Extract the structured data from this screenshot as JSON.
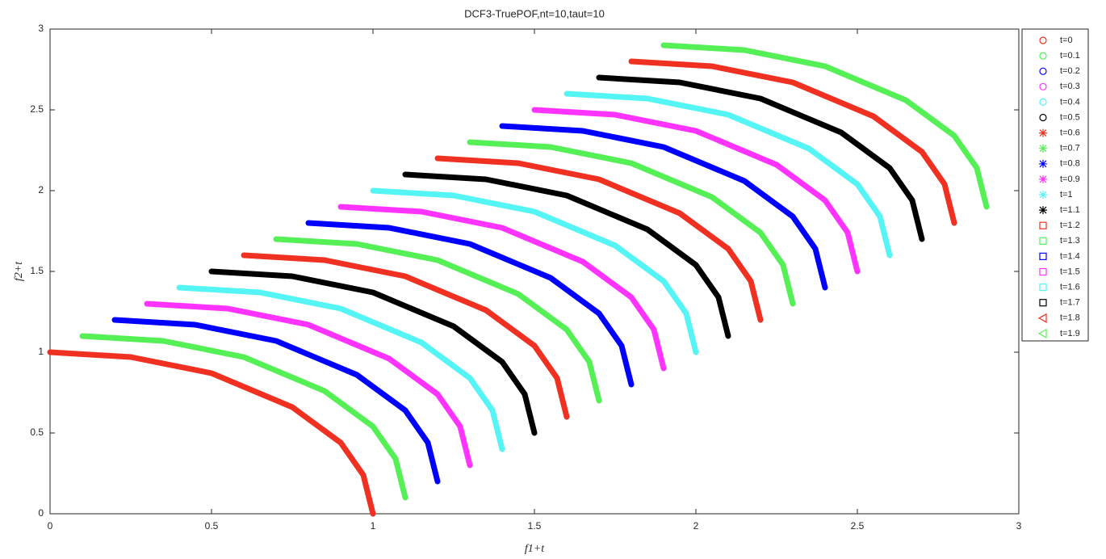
{
  "chart_data": {
    "type": "line",
    "title": "DCF3-TruePOF,nt=10,taut=10",
    "xlabel": "f1+t",
    "ylabel": "f2+t",
    "xlim": [
      0,
      3
    ],
    "ylim": [
      0,
      3
    ],
    "xticks": [
      0,
      0.5,
      1,
      1.5,
      2,
      2.5,
      3
    ],
    "yticks": [
      0,
      0.5,
      1,
      1.5,
      2,
      2.5,
      3
    ],
    "legend": "upper right outside",
    "series": [
      {
        "name": "t=0",
        "color": "#f03020",
        "marker": "circle",
        "x": [
          0,
          0.25,
          0.5,
          0.75,
          0.9,
          0.97,
          1
        ],
        "values": [
          1,
          0.97,
          0.87,
          0.66,
          0.44,
          0.24,
          0
        ]
      },
      {
        "name": "t=0.1",
        "color": "#55f055",
        "marker": "circle",
        "x": [
          0.1,
          0.35,
          0.6,
          0.85,
          1,
          1.07,
          1.1
        ],
        "values": [
          1.1,
          1.07,
          0.97,
          0.76,
          0.54,
          0.34,
          0.1
        ]
      },
      {
        "name": "t=0.2",
        "color": "#0000ff",
        "marker": "circle",
        "x": [
          0.2,
          0.45,
          0.7,
          0.95,
          1.1,
          1.17,
          1.2
        ],
        "values": [
          1.2,
          1.17,
          1.07,
          0.86,
          0.64,
          0.44,
          0.2
        ]
      },
      {
        "name": "t=0.3",
        "color": "#ff33ff",
        "marker": "circle",
        "x": [
          0.3,
          0.55,
          0.8,
          1.05,
          1.2,
          1.27,
          1.3
        ],
        "values": [
          1.3,
          1.27,
          1.17,
          0.96,
          0.74,
          0.54,
          0.3
        ]
      },
      {
        "name": "t=0.4",
        "color": "#55f5f5",
        "marker": "circle",
        "x": [
          0.4,
          0.65,
          0.9,
          1.15,
          1.3,
          1.37,
          1.4
        ],
        "values": [
          1.4,
          1.37,
          1.27,
          1.06,
          0.84,
          0.64,
          0.4
        ]
      },
      {
        "name": "t=0.5",
        "color": "#000000",
        "marker": "circle",
        "x": [
          0.5,
          0.75,
          1,
          1.25,
          1.4,
          1.47,
          1.5
        ],
        "values": [
          1.5,
          1.47,
          1.37,
          1.16,
          0.94,
          0.74,
          0.5
        ]
      },
      {
        "name": "t=0.6",
        "color": "#f03020",
        "marker": "star",
        "x": [
          0.6,
          0.85,
          1.1,
          1.35,
          1.5,
          1.57,
          1.6
        ],
        "values": [
          1.6,
          1.57,
          1.47,
          1.26,
          1.04,
          0.84,
          0.6
        ]
      },
      {
        "name": "t=0.7",
        "color": "#55f055",
        "marker": "star",
        "x": [
          0.7,
          0.95,
          1.2,
          1.45,
          1.6,
          1.67,
          1.7
        ],
        "values": [
          1.7,
          1.67,
          1.57,
          1.36,
          1.14,
          0.94,
          0.7
        ]
      },
      {
        "name": "t=0.8",
        "color": "#0000ff",
        "marker": "star",
        "x": [
          0.8,
          1.05,
          1.3,
          1.55,
          1.7,
          1.77,
          1.8
        ],
        "values": [
          1.8,
          1.77,
          1.67,
          1.46,
          1.24,
          1.04,
          0.8
        ]
      },
      {
        "name": "t=0.9",
        "color": "#ff33ff",
        "marker": "star",
        "x": [
          0.9,
          1.15,
          1.4,
          1.65,
          1.8,
          1.87,
          1.9
        ],
        "values": [
          1.9,
          1.87,
          1.77,
          1.56,
          1.34,
          1.14,
          0.9
        ]
      },
      {
        "name": "t=1",
        "color": "#55f5f5",
        "marker": "star",
        "x": [
          1,
          1.25,
          1.5,
          1.75,
          1.9,
          1.97,
          2
        ],
        "values": [
          2,
          1.97,
          1.87,
          1.66,
          1.44,
          1.24,
          1
        ]
      },
      {
        "name": "t=1.1",
        "color": "#000000",
        "marker": "star",
        "x": [
          1.1,
          1.35,
          1.6,
          1.85,
          2,
          2.07,
          2.1
        ],
        "values": [
          2.1,
          2.07,
          1.97,
          1.76,
          1.54,
          1.34,
          1.1
        ]
      },
      {
        "name": "t=1.2",
        "color": "#f03020",
        "marker": "square",
        "x": [
          1.2,
          1.45,
          1.7,
          1.95,
          2.1,
          2.17,
          2.2
        ],
        "values": [
          2.2,
          2.17,
          2.07,
          1.86,
          1.64,
          1.44,
          1.2
        ]
      },
      {
        "name": "t=1.3",
        "color": "#55f055",
        "marker": "square",
        "x": [
          1.3,
          1.55,
          1.8,
          2.05,
          2.2,
          2.27,
          2.3
        ],
        "values": [
          2.3,
          2.27,
          2.17,
          1.96,
          1.74,
          1.54,
          1.3
        ]
      },
      {
        "name": "t=1.4",
        "color": "#0000ff",
        "marker": "square",
        "x": [
          1.4,
          1.65,
          1.9,
          2.15,
          2.3,
          2.37,
          2.4
        ],
        "values": [
          2.4,
          2.37,
          2.27,
          2.06,
          1.84,
          1.64,
          1.4
        ]
      },
      {
        "name": "t=1.5",
        "color": "#ff33ff",
        "marker": "square",
        "x": [
          1.5,
          1.75,
          2,
          2.25,
          2.4,
          2.47,
          2.5
        ],
        "values": [
          2.5,
          2.47,
          2.37,
          2.16,
          1.94,
          1.74,
          1.5
        ]
      },
      {
        "name": "t=1.6",
        "color": "#55f5f5",
        "marker": "square",
        "x": [
          1.6,
          1.85,
          2.1,
          2.35,
          2.5,
          2.57,
          2.6
        ],
        "values": [
          2.6,
          2.57,
          2.47,
          2.26,
          2.04,
          1.84,
          1.6
        ]
      },
      {
        "name": "t=1.7",
        "color": "#000000",
        "marker": "square",
        "x": [
          1.7,
          1.95,
          2.2,
          2.45,
          2.6,
          2.67,
          2.7
        ],
        "values": [
          2.7,
          2.67,
          2.57,
          2.36,
          2.14,
          1.94,
          1.7
        ]
      },
      {
        "name": "t=1.8",
        "color": "#f03020",
        "marker": "triangle",
        "x": [
          1.8,
          2.05,
          2.3,
          2.55,
          2.7,
          2.77,
          2.8
        ],
        "values": [
          2.8,
          2.77,
          2.67,
          2.46,
          2.24,
          2.04,
          1.8
        ]
      },
      {
        "name": "t=1.9",
        "color": "#55f055",
        "marker": "triangle",
        "x": [
          1.9,
          2.15,
          2.4,
          2.65,
          2.8,
          2.87,
          2.9
        ],
        "values": [
          2.9,
          2.87,
          2.77,
          2.56,
          2.34,
          2.14,
          1.9
        ]
      }
    ]
  }
}
